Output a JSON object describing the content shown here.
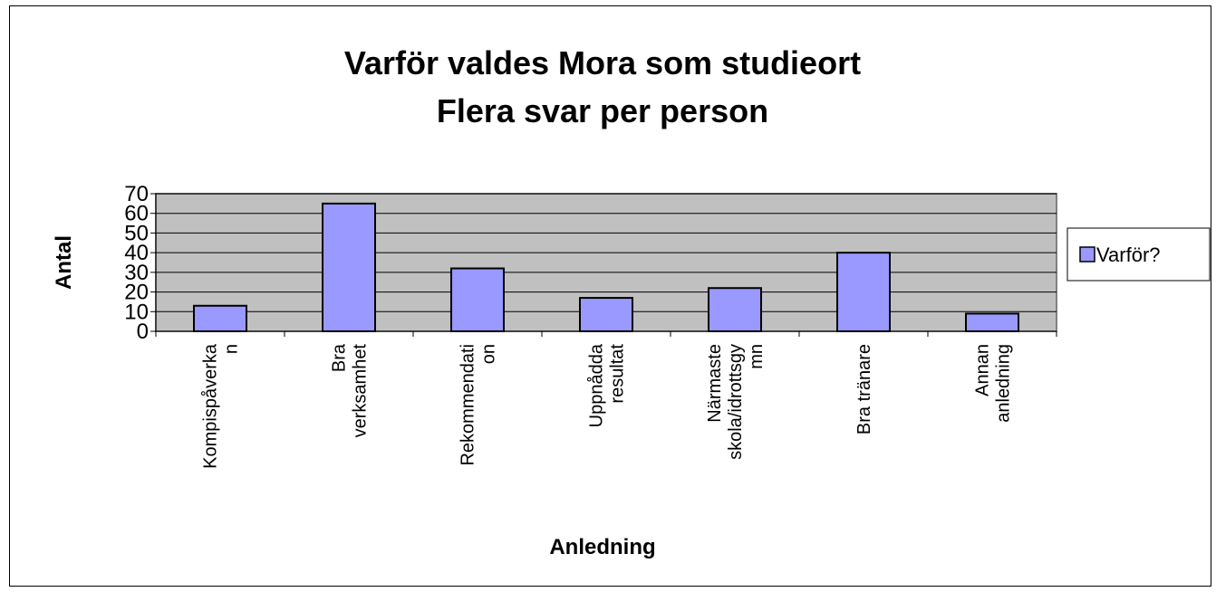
{
  "chart_data": {
    "type": "bar",
    "title": "Varför valdes Mora som studieort",
    "subtitle": "Flera svar per person",
    "y_label": "Antal",
    "x_label": "Anledning",
    "categories": [
      "Kompispåverka\nn",
      "Bra\nverksamhet",
      "Rekommendati\non",
      "Uppnådda\nresultat",
      "Närmaste\nskola/idrottsgy\nmn",
      "Bra tränare",
      "Annan\nanledning"
    ],
    "series": [
      {
        "name": "Varför?",
        "color": "#9999ff",
        "values": [
          13,
          65,
          32,
          17,
          22,
          40,
          9
        ]
      }
    ],
    "ylim": [
      0,
      70
    ],
    "yticks": [
      0,
      10,
      20,
      30,
      40,
      50,
      60,
      70
    ],
    "grid": true,
    "legend": "right",
    "plot_background": "#c0c0c0"
  }
}
